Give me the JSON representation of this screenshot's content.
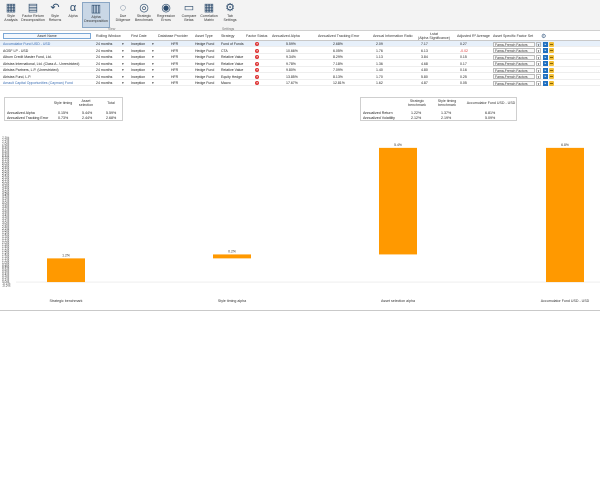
{
  "ribbon": {
    "buttons": [
      {
        "key": "style_analysis",
        "label": "Style\nAnalysis",
        "icon": "style-analysis-icon",
        "glyph": "▦"
      },
      {
        "key": "factor_return",
        "label": "Factor Return\nDecomposition",
        "icon": "factor-return-icon",
        "glyph": "▤"
      },
      {
        "key": "style_returns",
        "label": "Style\nReturns",
        "icon": "undo-arrow-icon",
        "glyph": "↶"
      },
      {
        "key": "alpha",
        "label": "Alpha",
        "icon": "alpha-icon",
        "glyph": "α"
      },
      {
        "key": "alpha_decomposition",
        "label": "Alpha\nDecomposition",
        "icon": "alpha-decomposition-icon",
        "glyph": "▥"
      },
      {
        "key": "due_diligence",
        "label": "Due\nDiligence",
        "icon": "due-diligence-icon",
        "glyph": "◌"
      },
      {
        "key": "strategic_benchmark",
        "label": "Strategic\nBenchmark",
        "icon": "benchmark-icon",
        "glyph": "◎"
      },
      {
        "key": "regression_errors",
        "label": "Regression\nErrors",
        "icon": "regression-errors-icon",
        "glyph": "◉"
      },
      {
        "key": "compare_betas",
        "label": "Compare\nBetas",
        "icon": "compare-betas-icon",
        "glyph": "▭"
      },
      {
        "key": "correlation_matrix",
        "label": "Correlation\nMatrix",
        "icon": "correlation-matrix-icon",
        "glyph": "▦"
      },
      {
        "key": "tab_settings",
        "label": "Tab\nSettings",
        "icon": "gear-icon",
        "glyph": "⚙"
      }
    ],
    "group_view": "View",
    "group_settings": "Settings"
  },
  "table": {
    "headers": {
      "asset_name": "Asset Name",
      "rolling_window": "Rolling Window",
      "first_date": "First Date",
      "database_provider": "Database Provider",
      "asset_type": "Asset Type",
      "strategy": "Strategy",
      "factor_status": "Factor Status",
      "annualized_alpha": "Annualized Alpha",
      "annualized_tracking_error": "Annualized Tracking Error",
      "annual_information_ratio": "Annual Information Ratio",
      "t_stat": "t-stat\n(Alpha Significance)",
      "adjusted_r2": "Adjusted R² Average",
      "asset_specific_factor_set": "Asset Specific Factor Set"
    },
    "rows": [
      {
        "name": "Accumulator Fund USD - USD",
        "window": "24 months",
        "first": "Inception",
        "db": "HFR",
        "type": "Hedge Fund",
        "strategy": "Fund of Funds",
        "alpha": "5.59%",
        "te": "2.68%",
        "ir": "2.09",
        "tstat": "7.17",
        "r2": "0.27",
        "factor": "Fama-French Factors",
        "selected": true,
        "link": true,
        "r2_neg": false
      },
      {
        "name": "AGSF LP - USD",
        "window": "24 months",
        "first": "Inception",
        "db": "HFR",
        "type": "Hedge Fund",
        "strategy": "CTA",
        "alpha": "10.66%",
        "te": "6.05%",
        "ir": "1.76",
        "tstat": "6.13",
        "r2": "-0.02",
        "factor": "Fama-French Factors",
        "selected": false,
        "link": false,
        "r2_neg": true
      },
      {
        "name": "Album Credit Master Fund, Ltd.",
        "window": "24 months",
        "first": "Inception",
        "db": "HFR",
        "type": "Hedge Fund",
        "strategy": "Relative Value",
        "alpha": "9.34%",
        "te": "8.29%",
        "ir": "1.13",
        "tstat": "3.84",
        "r2": "0.15",
        "factor": "Fama-French Factors",
        "selected": false,
        "link": false,
        "r2_neg": false
      },
      {
        "name": "Alrisiea International, Ltd. (Class A - Unrestricted)",
        "window": "24 months",
        "first": "Inception",
        "db": "HFR",
        "type": "Hedge Fund",
        "strategy": "Relative Value",
        "alpha": "9.78%",
        "te": "7.18%",
        "ir": "1.36",
        "tstat": "4.68",
        "r2": "0.17",
        "factor": "Fama-French Factors",
        "selected": false,
        "link": false,
        "r2_neg": false
      },
      {
        "name": "Alrisiea Partners, L.P. (Unrestricted)",
        "window": "24 months",
        "first": "Inception",
        "db": "HFR",
        "type": "Hedge Fund",
        "strategy": "Relative Value",
        "alpha": "9.80%",
        "te": "7.09%",
        "ir": "1.40",
        "tstat": "4.80",
        "r2": "0.16",
        "factor": "Fama-French Factors",
        "selected": false,
        "link": false,
        "r2_neg": false
      },
      {
        "name": "Alrisiea Fund, L.P.",
        "window": "24 months",
        "first": "Inception",
        "db": "HFR",
        "type": "Hedge Fund",
        "strategy": "Equity Hedge",
        "alpha": "13.85%",
        "te": "8.13%",
        "ir": "1.70",
        "tstat": "5.80",
        "r2": "0.25",
        "factor": "Fama-French Factors",
        "selected": false,
        "link": false,
        "r2_neg": false
      },
      {
        "name": "Amault Capital Opportunities (Cayman) Fund",
        "window": "24 months",
        "first": "Inception",
        "db": "HFR",
        "type": "Hedge Fund",
        "strategy": "Macro",
        "alpha": "17.67%",
        "te": "12.81%",
        "ir": "1.62",
        "tstat": "4.87",
        "r2": "0.05",
        "factor": "Fama-French Factors",
        "selected": false,
        "link": true,
        "r2_neg": false
      }
    ]
  },
  "summary_left": {
    "col1": "Style timing",
    "col2": "Asset\nselection",
    "col3": "Total",
    "rows": [
      {
        "label": "Annualized Alpha",
        "v1": "0.15%",
        "v2": "5.44%",
        "v3": "5.59%"
      },
      {
        "label": "Annualized Tracking Error",
        "v1": "0.73%",
        "v2": "2.44%",
        "v3": "2.68%"
      }
    ]
  },
  "summary_right": {
    "col1": "Strategic\nbenchmark",
    "col2": "Style timing\nbenchmark",
    "col3": "Accumulator Fund USD - USD",
    "rows": [
      {
        "label": "Annualized Return",
        "v1": "1.22%",
        "v2": "1.37%",
        "v3": "6.81%"
      },
      {
        "label": "Annualized Volatility",
        "v1": "2.12%",
        "v2": "2.19%",
        "v3": "5.09%"
      }
    ]
  },
  "chart_data": {
    "type": "bar",
    "subtype": "waterfall",
    "categories": [
      "Strategic benchmark",
      "Style timing alpha",
      "Asset selection alpha",
      "Accumulator Fund USD - USD"
    ],
    "bars": [
      {
        "base": 0.0,
        "top": 1.2,
        "label": "1.2%"
      },
      {
        "base": 1.2,
        "top": 1.4,
        "label": "0.2%"
      },
      {
        "base": 1.4,
        "top": 6.8,
        "label": "5.4%"
      },
      {
        "base": 0.0,
        "top": 6.8,
        "label": "6.8%"
      }
    ],
    "ylim": [
      -0.2,
      7.3
    ],
    "yticks": [
      "-0.2%",
      "-0.1%",
      "0.0%",
      "0.1%",
      "0.2%",
      "0.3%",
      "0.4%",
      "0.5%",
      "0.6%",
      "0.7%",
      "0.8%",
      "0.9%",
      "1.0%",
      "1.1%",
      "1.2%",
      "1.3%",
      "1.4%",
      "1.5%",
      "1.6%",
      "1.7%",
      "1.8%",
      "1.9%",
      "2.0%",
      "2.1%",
      "2.2%",
      "2.3%",
      "2.4%",
      "2.5%",
      "2.6%",
      "2.7%",
      "2.8%",
      "2.9%",
      "3.0%",
      "3.1%",
      "3.2%",
      "3.3%",
      "3.4%",
      "3.5%",
      "3.6%",
      "3.7%",
      "3.8%",
      "3.9%",
      "4.0%",
      "4.1%",
      "4.2%",
      "4.3%",
      "4.4%",
      "4.5%",
      "4.6%",
      "4.7%",
      "4.8%",
      "4.9%",
      "5.0%",
      "5.1%",
      "5.2%",
      "5.3%",
      "5.4%",
      "5.5%",
      "5.6%",
      "5.7%",
      "5.8%",
      "5.9%",
      "6.0%",
      "6.1%",
      "6.2%",
      "6.3%",
      "6.4%",
      "6.5%",
      "6.6%",
      "6.7%",
      "6.8%",
      "6.9%",
      "7.0%",
      "7.1%",
      "7.2%",
      "7.3%"
    ],
    "bar_color": "#ff9900",
    "grid": false,
    "title": "",
    "xlabel": "",
    "ylabel": ""
  }
}
